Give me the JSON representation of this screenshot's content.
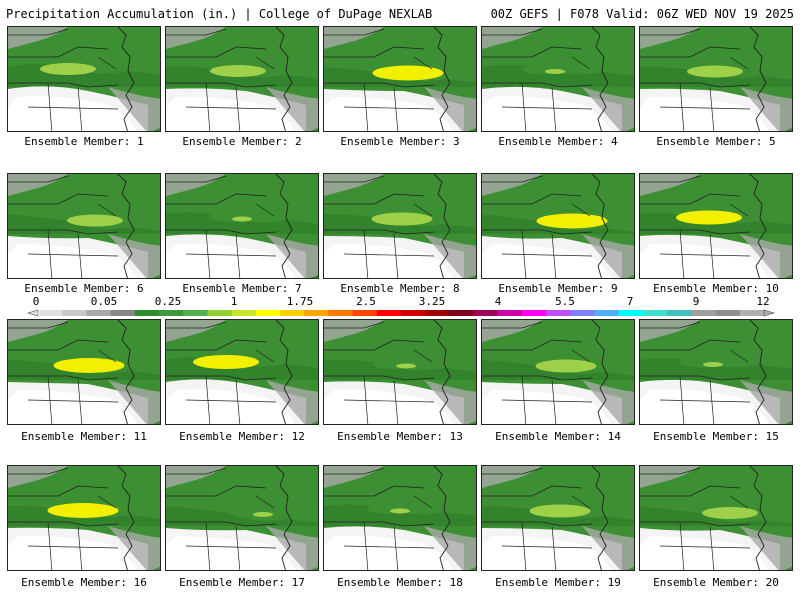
{
  "header": {
    "title_left": "Precipitation Accumulation (in.) | College of DuPage NEXLAB",
    "title_right": "00Z GEFS | F078 Valid: 06Z WED NOV 19 2025"
  },
  "panel_label_prefix": "Ensemble Member: ",
  "members": [
    {
      "label": "Ensemble Member: 1",
      "max_precip_in": 1.0
    },
    {
      "label": "Ensemble Member: 2",
      "max_precip_in": 1.0
    },
    {
      "label": "Ensemble Member: 3",
      "max_precip_in": 1.75
    },
    {
      "label": "Ensemble Member: 4",
      "max_precip_in": 0.5
    },
    {
      "label": "Ensemble Member: 5",
      "max_precip_in": 1.0
    },
    {
      "label": "Ensemble Member: 6",
      "max_precip_in": 1.0
    },
    {
      "label": "Ensemble Member: 7",
      "max_precip_in": 0.5
    },
    {
      "label": "Ensemble Member: 8",
      "max_precip_in": 1.25
    },
    {
      "label": "Ensemble Member: 9",
      "max_precip_in": 1.75
    },
    {
      "label": "Ensemble Member: 10",
      "max_precip_in": 1.5
    },
    {
      "label": "Ensemble Member: 11",
      "max_precip_in": 1.75
    },
    {
      "label": "Ensemble Member: 12",
      "max_precip_in": 1.5
    },
    {
      "label": "Ensemble Member: 13",
      "max_precip_in": 0.5
    },
    {
      "label": "Ensemble Member: 14",
      "max_precip_in": 1.25
    },
    {
      "label": "Ensemble Member: 15",
      "max_precip_in": 0.5
    },
    {
      "label": "Ensemble Member: 16",
      "max_precip_in": 1.75
    },
    {
      "label": "Ensemble Member: 17",
      "max_precip_in": 0.5
    },
    {
      "label": "Ensemble Member: 18",
      "max_precip_in": 0.5
    },
    {
      "label": "Ensemble Member: 19",
      "max_precip_in": 1.25
    },
    {
      "label": "Ensemble Member: 20",
      "max_precip_in": 1.0
    }
  ],
  "colorbar": {
    "labels": [
      "0",
      "0.05",
      "0.25",
      "1",
      "1.75",
      "2.5",
      "3.25",
      "4",
      "5.5",
      "7",
      "9",
      "12"
    ],
    "colors": [
      "#e0e0e0",
      "#c8c8c8",
      "#a8a8a8",
      "#888888",
      "#2e8b2e",
      "#3c9b3c",
      "#4fb04f",
      "#8fcf2f",
      "#c8e628",
      "#ffff00",
      "#ffd000",
      "#ffa500",
      "#ff7a00",
      "#ff4500",
      "#ff0000",
      "#d00000",
      "#a00000",
      "#800020",
      "#a0005a",
      "#cc00aa",
      "#ff00ff",
      "#c050ff",
      "#8080ff",
      "#50b0ff",
      "#00ffff",
      "#40e0d0",
      "#40c0c0",
      "#a0a0a0",
      "#909090",
      "#b0b0b0"
    ],
    "palette": {
      "land_green": "#3c8f32",
      "dark_green": "#2e7d2a",
      "light_green": "#5aa83c",
      "yellow_green": "#9fd04a",
      "yellow": "#f2f000",
      "gray": "#a9a9a9",
      "white": "#f4f4f4"
    }
  }
}
